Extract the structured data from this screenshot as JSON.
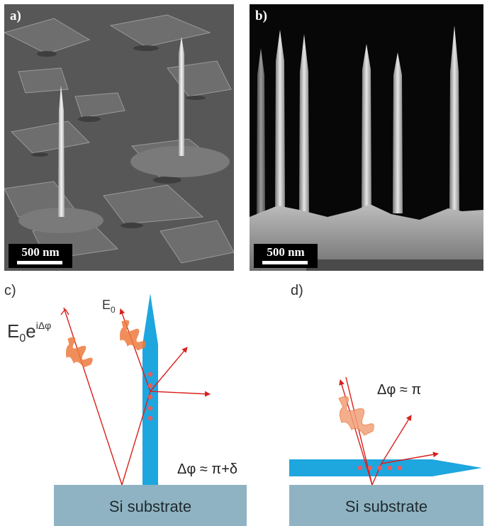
{
  "panels": {
    "a": {
      "letter": "a)",
      "scale": "500 nm"
    },
    "b": {
      "letter": "b)",
      "scale": "500 nm"
    },
    "c": {
      "letter": "c)",
      "field_reflected": "E",
      "field_reflected_sub": "0",
      "field_reflected_sup": "e",
      "field_reflected_sup2": "iΔφ",
      "field_incident": "E",
      "field_incident_sub": "0",
      "phase": "Δφ ≈ π+δ",
      "substrate": "Si substrate"
    },
    "d": {
      "letter": "d)",
      "phase": "Δφ ≈ π",
      "substrate": "Si substrate"
    }
  },
  "colors": {
    "nanowire": "#1ea6df",
    "substrate": "#8fb3c2",
    "ray": "#d8201c",
    "wave": "#ee7b3f",
    "dots": "#f05a5a"
  }
}
